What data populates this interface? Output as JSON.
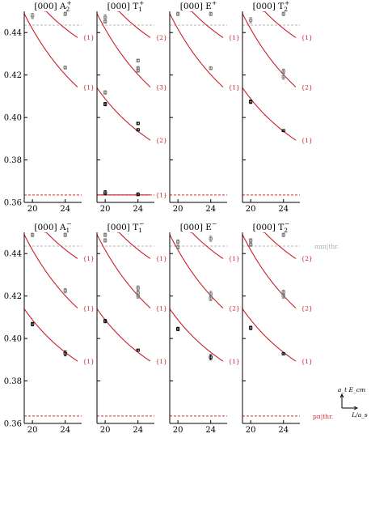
{
  "chart_data": {
    "type": "scatter",
    "x_ticks": [
      20,
      24
    ],
    "y_ticks": [
      0.36,
      0.38,
      0.4,
      0.42,
      0.44
    ],
    "y_tick_labels": [
      "0.36",
      "0.38",
      "0.40",
      "0.42",
      "0.44"
    ],
    "xlim": [
      19,
      26
    ],
    "ylim": [
      0.36,
      0.45
    ],
    "grid": false,
    "thresholds": {
      "red": 0.3635,
      "gray": 0.4435,
      "red_label": "pπ|thr.",
      "gray_label": "πππ|thr."
    },
    "axis_note": {
      "y": "a_t E_cm",
      "x": "L/a_s"
    },
    "panels": [
      {
        "title": "[000] A",
        "title_sup": "+",
        "title_sub": "2",
        "curves": [
          {
            "values": [
              0.4575,
              0.4419
            ],
            "label": "{1}"
          },
          {
            "values": [
              0.4417,
              0.4202
            ],
            "label": "{1}"
          }
        ],
        "points": [
          {
            "x": 20,
            "y": 0.4478,
            "err": 0.0012,
            "color": "gray"
          },
          {
            "x": 24,
            "y": 0.4235,
            "err": 0.0007,
            "color": "gray"
          },
          {
            "x": 24,
            "y": 0.4488,
            "err": 0.0008,
            "color": "gray"
          }
        ]
      },
      {
        "title": "[000] T",
        "title_sup": "+",
        "title_sub": "1",
        "curves": [
          {
            "values": [
              0.4575,
              0.4419
            ],
            "label": "{2}"
          },
          {
            "values": [
              0.4417,
              0.4202
            ],
            "label": "{3}"
          },
          {
            "values": [
              0.4088,
              0.3935
            ],
            "label": "{2}"
          },
          {
            "values": [
              0.3635,
              0.3635
            ],
            "label": "{1}"
          }
        ],
        "points": [
          {
            "x": 20,
            "y": 0.4472,
            "err": 0.0012,
            "color": "gray"
          },
          {
            "x": 20,
            "y": 0.4452,
            "err": 0.0008,
            "color": "gray"
          },
          {
            "x": 20,
            "y": 0.4118,
            "err": 0.0008,
            "color": "gray"
          },
          {
            "x": 24,
            "y": 0.4268,
            "err": 0.0007,
            "color": "gray"
          },
          {
            "x": 24,
            "y": 0.4232,
            "err": 0.0008,
            "color": "gray"
          },
          {
            "x": 24,
            "y": 0.4221,
            "err": 0.0008,
            "color": "gray"
          },
          {
            "x": 20,
            "y": 0.4063,
            "err": 0.0008,
            "color": "black"
          },
          {
            "x": 24,
            "y": 0.3972,
            "err": 0.0006,
            "color": "black"
          },
          {
            "x": 24,
            "y": 0.3942,
            "err": 0.0006,
            "color": "black"
          },
          {
            "x": 20,
            "y": 0.3645,
            "err": 0.001,
            "color": "black"
          },
          {
            "x": 24,
            "y": 0.3638,
            "err": 0.0007,
            "color": "black"
          }
        ]
      },
      {
        "title": "[000] E",
        "title_sup": "+",
        "title_sub": "",
        "curves": [
          {
            "values": [
              0.4575,
              0.4419
            ],
            "label": "{1}"
          },
          {
            "values": [
              0.4417,
              0.4202
            ],
            "label": "{1}"
          }
        ],
        "points": [
          {
            "x": 20,
            "y": 0.4488,
            "err": 0.0008,
            "color": "gray"
          },
          {
            "x": 24,
            "y": 0.4488,
            "err": 0.0008,
            "color": "gray"
          },
          {
            "x": 24,
            "y": 0.4232,
            "err": 0.0007,
            "color": "gray"
          }
        ]
      },
      {
        "title": "[000] T",
        "title_sup": "+",
        "title_sub": "2",
        "curves": [
          {
            "values": [
              0.4575,
              0.4419
            ],
            "label": "{1}"
          },
          {
            "values": [
              0.4417,
              0.4202
            ],
            "label": "{2}"
          },
          {
            "values": [
              0.4088,
              0.3935
            ],
            "label": "{1}"
          }
        ],
        "points": [
          {
            "x": 20,
            "y": 0.4458,
            "err": 0.0012,
            "color": "gray"
          },
          {
            "x": 24,
            "y": 0.4488,
            "err": 0.0008,
            "color": "gray"
          },
          {
            "x": 24,
            "y": 0.4218,
            "err": 0.001,
            "color": "gray"
          },
          {
            "x": 24,
            "y": 0.4192,
            "err": 0.0012,
            "color": "gray"
          },
          {
            "x": 20,
            "y": 0.4074,
            "err": 0.0008,
            "color": "black"
          },
          {
            "x": 24,
            "y": 0.3938,
            "err": 0.0005,
            "color": "black"
          }
        ]
      },
      {
        "title": "[000] A",
        "title_sup": "−",
        "title_sub": "1",
        "curves": [
          {
            "values": [
              0.4575,
              0.4419
            ],
            "label": "{1}"
          },
          {
            "values": [
              0.4417,
              0.4202
            ],
            "label": "{1}"
          },
          {
            "values": [
              0.4088,
              0.3935
            ],
            "label": "{1}"
          }
        ],
        "points": [
          {
            "x": 20,
            "y": 0.4488,
            "err": 0.0008,
            "color": "gray"
          },
          {
            "x": 24,
            "y": 0.4488,
            "err": 0.0008,
            "color": "gray"
          },
          {
            "x": 24,
            "y": 0.4225,
            "err": 0.001,
            "color": "gray"
          },
          {
            "x": 20,
            "y": 0.4068,
            "err": 0.0008,
            "color": "black"
          },
          {
            "x": 24,
            "y": 0.393,
            "err": 0.0012,
            "color": "black"
          }
        ]
      },
      {
        "title": "[000] T",
        "title_sup": "−",
        "title_sub": "1",
        "curves": [
          {
            "values": [
              0.4575,
              0.4419
            ],
            "label": "{1}"
          },
          {
            "values": [
              0.4417,
              0.4202
            ],
            "label": "{1}"
          },
          {
            "values": [
              0.4088,
              0.3935
            ],
            "label": "{1}"
          }
        ],
        "points": [
          {
            "x": 20,
            "y": 0.4488,
            "err": 0.0008,
            "color": "gray"
          },
          {
            "x": 20,
            "y": 0.4462,
            "err": 0.0008,
            "color": "gray"
          },
          {
            "x": 24,
            "y": 0.4238,
            "err": 0.001,
            "color": "gray"
          },
          {
            "x": 24,
            "y": 0.4215,
            "err": 0.001,
            "color": "gray"
          },
          {
            "x": 24,
            "y": 0.42,
            "err": 0.001,
            "color": "gray"
          },
          {
            "x": 20,
            "y": 0.4082,
            "err": 0.0008,
            "color": "black"
          },
          {
            "x": 24,
            "y": 0.3945,
            "err": 0.0005,
            "color": "black"
          }
        ]
      },
      {
        "title": "[000] E",
        "title_sup": "−",
        "title_sub": "",
        "curves": [
          {
            "values": [
              0.4575,
              0.4419
            ],
            "label": "{1}"
          },
          {
            "values": [
              0.4417,
              0.4202
            ],
            "label": "{2}"
          },
          {
            "values": [
              0.4088,
              0.3935
            ],
            "label": "{1}"
          }
        ],
        "points": [
          {
            "x": 20,
            "y": 0.4455,
            "err": 0.001,
            "color": "gray"
          },
          {
            "x": 20,
            "y": 0.443,
            "err": 0.0008,
            "color": "gray"
          },
          {
            "x": 24,
            "y": 0.447,
            "err": 0.0012,
            "color": "gray"
          },
          {
            "x": 24,
            "y": 0.421,
            "err": 0.0012,
            "color": "gray"
          },
          {
            "x": 24,
            "y": 0.419,
            "err": 0.0012,
            "color": "gray"
          },
          {
            "x": 20,
            "y": 0.4045,
            "err": 0.0008,
            "color": "black"
          },
          {
            "x": 24,
            "y": 0.3912,
            "err": 0.0012,
            "color": "black"
          }
        ]
      },
      {
        "title": "[000] T",
        "title_sup": "−",
        "title_sub": "2",
        "curves": [
          {
            "values": [
              0.4575,
              0.4419
            ],
            "label": "{2}"
          },
          {
            "values": [
              0.4417,
              0.4202
            ],
            "label": "{2}"
          },
          {
            "values": [
              0.4088,
              0.3935
            ],
            "label": "{1}"
          }
        ],
        "points": [
          {
            "x": 20,
            "y": 0.4462,
            "err": 0.0008,
            "color": "gray"
          },
          {
            "x": 20,
            "y": 0.4442,
            "err": 0.0008,
            "color": "gray"
          },
          {
            "x": 24,
            "y": 0.4488,
            "err": 0.0008,
            "color": "gray"
          },
          {
            "x": 24,
            "y": 0.4218,
            "err": 0.001,
            "color": "gray"
          },
          {
            "x": 24,
            "y": 0.42,
            "err": 0.001,
            "color": "gray"
          },
          {
            "x": 20,
            "y": 0.405,
            "err": 0.0008,
            "color": "black"
          },
          {
            "x": 24,
            "y": 0.3928,
            "err": 0.0005,
            "color": "black"
          }
        ]
      }
    ]
  }
}
